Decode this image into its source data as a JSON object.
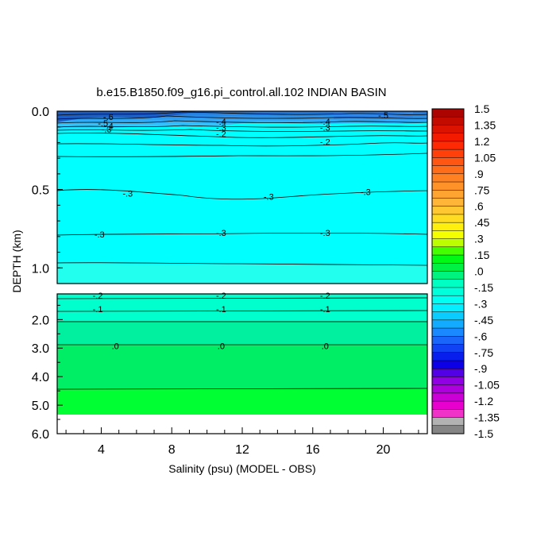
{
  "chart_data": {
    "type": "contour",
    "title": "b.e15.B1850.f09_g16.pi_control.all.102 INDIAN BASIN",
    "xlabel": "Salinity (psu) (MODEL - OBS)",
    "ylabel": "DEPTH (km)",
    "xlim": [
      1.5,
      22.5
    ],
    "x_ticks": [
      "4",
      "8",
      "12",
      "16",
      "20"
    ],
    "x_tick_values": [
      4,
      8,
      12,
      16,
      20
    ],
    "upper_panel": {
      "ylim": [
        0.0,
        1.1
      ],
      "y_ticks": [
        "0.0",
        "0.5",
        "1.0"
      ],
      "y_tick_values": [
        0.0,
        0.5,
        1.0
      ]
    },
    "lower_panel": {
      "ylim": [
        1.1,
        6.0
      ],
      "y_ticks": [
        "2.0",
        "3.0",
        "4.0",
        "5.0",
        "6.0"
      ],
      "y_tick_values": [
        2.0,
        3.0,
        4.0,
        5.0,
        6.0
      ]
    },
    "contour_labels": [
      {
        "text": "-.6",
        "x": 4.4,
        "depth": 0.04
      },
      {
        "text": "-.5",
        "x": 4.1,
        "depth": 0.08
      },
      {
        "text": "-.4",
        "x": 4.4,
        "depth": 0.1
      },
      {
        "text": "-.3",
        "x": 4.3,
        "depth": 0.12
      },
      {
        "text": "-.4",
        "x": 10.8,
        "depth": 0.07
      },
      {
        "text": "-.3",
        "x": 10.8,
        "depth": 0.11
      },
      {
        "text": "-.2",
        "x": 10.8,
        "depth": 0.15
      },
      {
        "text": "-.4",
        "x": 16.7,
        "depth": 0.07
      },
      {
        "text": "-.3",
        "x": 16.7,
        "depth": 0.11
      },
      {
        "text": "-.2",
        "x": 16.7,
        "depth": 0.2
      },
      {
        "text": "-.5",
        "x": 20.0,
        "depth": 0.03
      },
      {
        "text": "-.3",
        "x": 5.5,
        "depth": 0.53
      },
      {
        "text": "-.3",
        "x": 13.5,
        "depth": 0.55
      },
      {
        "text": "-.3",
        "x": 19.0,
        "depth": 0.52
      },
      {
        "text": "-.3",
        "x": 3.9,
        "depth": 0.79
      },
      {
        "text": "-.3",
        "x": 10.8,
        "depth": 0.78
      },
      {
        "text": "-.3",
        "x": 16.7,
        "depth": 0.78
      },
      {
        "text": "-.2",
        "x": 3.8,
        "depth": 1.18
      },
      {
        "text": "-.2",
        "x": 10.8,
        "depth": 1.18
      },
      {
        "text": "-.2",
        "x": 16.7,
        "depth": 1.18
      },
      {
        "text": "-.1",
        "x": 3.8,
        "depth": 1.65
      },
      {
        "text": "-.1",
        "x": 10.8,
        "depth": 1.65
      },
      {
        "text": "-.1",
        "x": 16.7,
        "depth": 1.65
      },
      {
        "text": ".0",
        "x": 4.8,
        "depth": 2.95
      },
      {
        "text": ".0",
        "x": 10.8,
        "depth": 2.95
      },
      {
        "text": ".0",
        "x": 16.7,
        "depth": 2.95
      }
    ],
    "colorbar": {
      "min": -1.5,
      "max": 1.5,
      "step": 0.075,
      "labels": [
        "1.5",
        "1.35",
        "1.2",
        "1.05",
        ".9",
        ".75",
        ".6",
        ".45",
        ".3",
        ".15",
        ".0",
        "-.15",
        "-.3",
        "-.45",
        "-.6",
        "-.75",
        "-.9",
        "-1.05",
        "-1.2",
        "-1.35",
        "-1.5"
      ],
      "label_values": [
        1.5,
        1.35,
        1.2,
        1.05,
        0.9,
        0.75,
        0.6,
        0.45,
        0.3,
        0.15,
        0.0,
        -0.15,
        -0.3,
        -0.45,
        -0.6,
        -0.75,
        -0.9,
        -1.05,
        -1.2,
        -1.35,
        -1.5
      ]
    },
    "colors": {
      "cyan": "#00ffff",
      "aqua_green": "#00ffcc",
      "green_mid": "#00f0a0",
      "green": "#00ee66",
      "green_bright": "#00ff33",
      "blue_shallow": "#3399ff",
      "missing": "#ffffff"
    }
  }
}
